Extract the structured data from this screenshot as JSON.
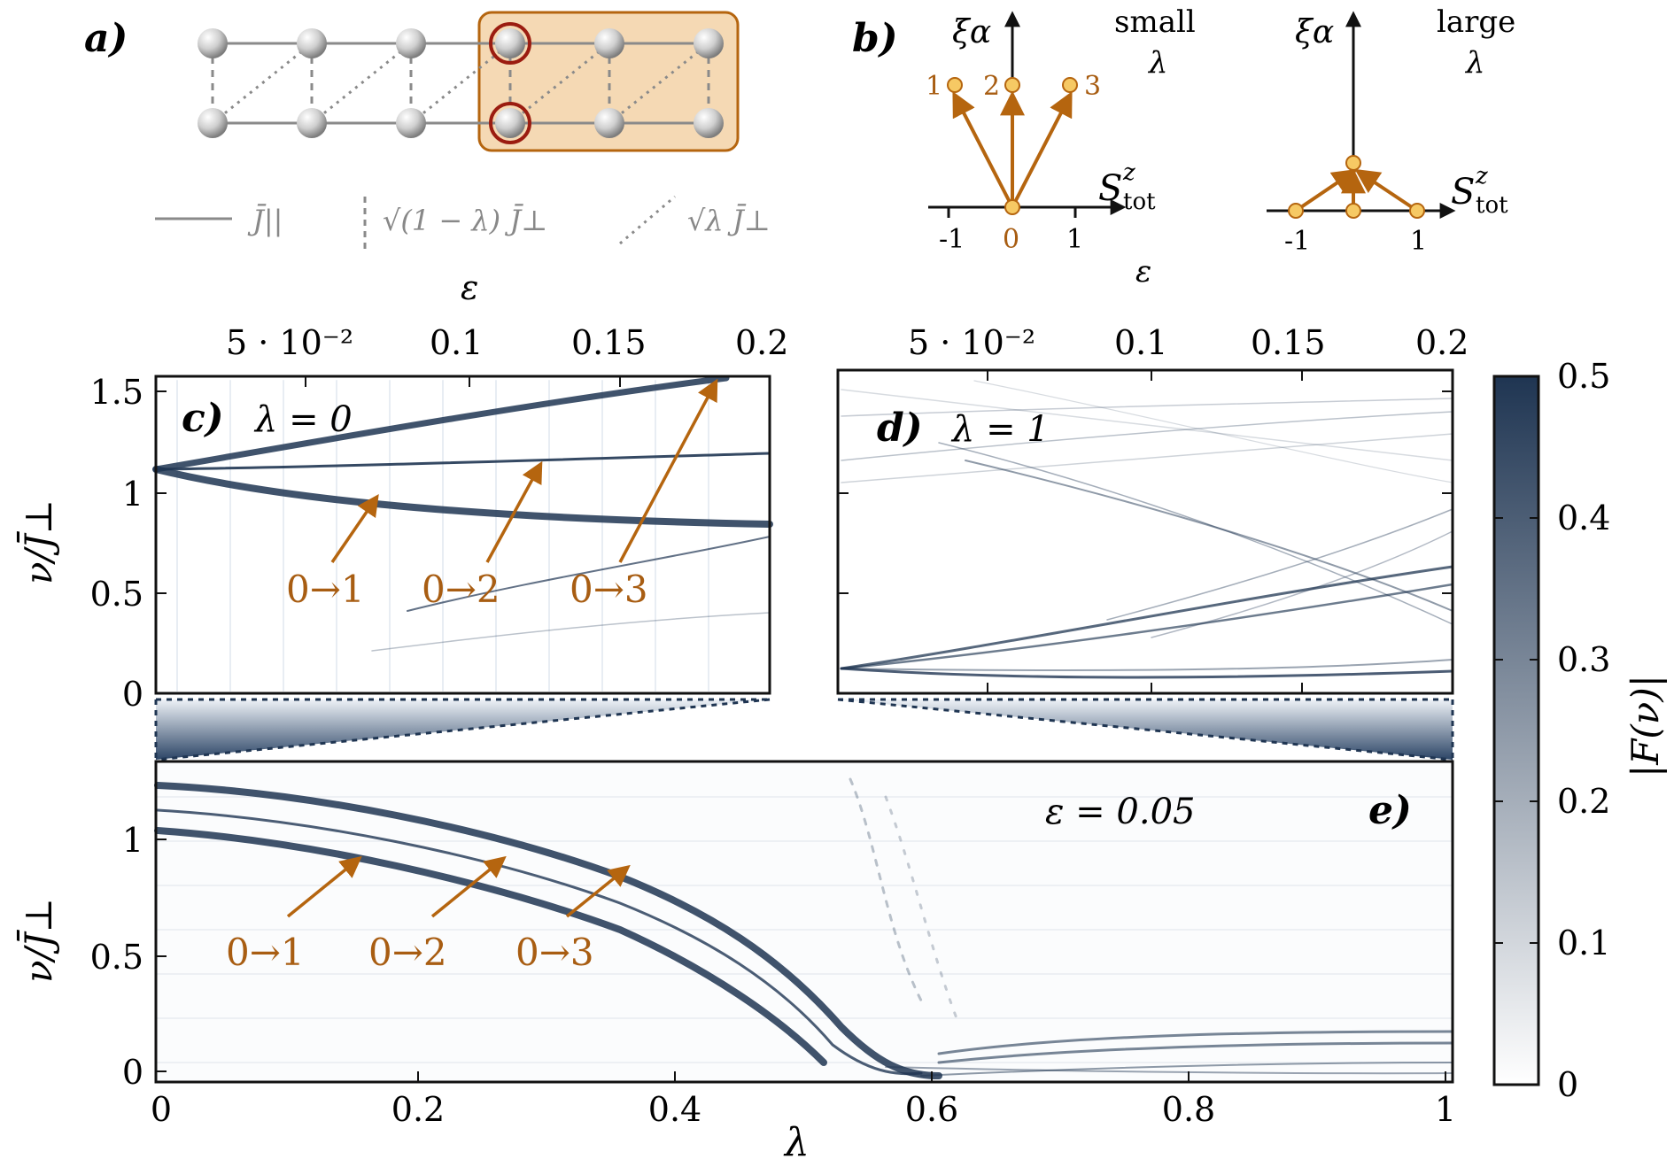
{
  "figure": {
    "colors": {
      "dark": "#1f3552",
      "orange": "#b5650f",
      "orange_fill": "#f5d9b4",
      "node_ring": "#9b1c10",
      "grey": "#8a8a8a"
    },
    "panel_a": {
      "label": "a)",
      "legend": [
        {
          "style": "solid",
          "text": "J̄||"
        },
        {
          "style": "dashed",
          "text": "√(1 − λ) J̄⊥"
        },
        {
          "style": "dotted",
          "text": "√λ J̄⊥"
        }
      ]
    },
    "panel_b": {
      "label": "b)",
      "y_label": "ξα",
      "x_label_main": "S",
      "x_label_sup": "z",
      "x_label_sub": "tot",
      "bottom_label": "ε",
      "small": {
        "line1": "small",
        "line2": "λ",
        "points": [
          "1",
          "2",
          "3"
        ],
        "ticks": [
          "-1",
          "0",
          "1"
        ]
      },
      "large": {
        "line1": "large",
        "line2": "λ",
        "ticks": [
          "-1",
          "1"
        ]
      }
    },
    "top_axis": {
      "label": "ε",
      "ticks_c": [
        "5 · 10⁻²",
        "0.1",
        "0.15",
        "0.2"
      ],
      "ticks_d": [
        "5 · 10⁻²",
        "0.1",
        "0.15",
        "0.2"
      ]
    },
    "panel_c": {
      "label": "c)",
      "param": "λ = 0",
      "y_ticks": [
        "1.5",
        "1",
        "0.5",
        "0"
      ],
      "y_label": "ν/J̄⊥",
      "arrows": [
        "0→1",
        "0→2",
        "0→3"
      ]
    },
    "panel_d": {
      "label": "d)",
      "param": "λ = 1"
    },
    "panel_e": {
      "label": "e)",
      "param": "ε = 0.05",
      "y_ticks": [
        "1",
        "0.5",
        "0"
      ],
      "y_label": "ν/J̄⊥",
      "x_ticks": [
        "0",
        "0.2",
        "0.4",
        "0.6",
        "0.8",
        "1"
      ],
      "x_label": "λ",
      "arrows": [
        "0→1",
        "0→2",
        "0→3"
      ]
    },
    "colorbar": {
      "label": "|F(ν)|",
      "ticks": [
        "0.5",
        "0.4",
        "0.3",
        "0.2",
        "0.1",
        "0"
      ]
    }
  }
}
